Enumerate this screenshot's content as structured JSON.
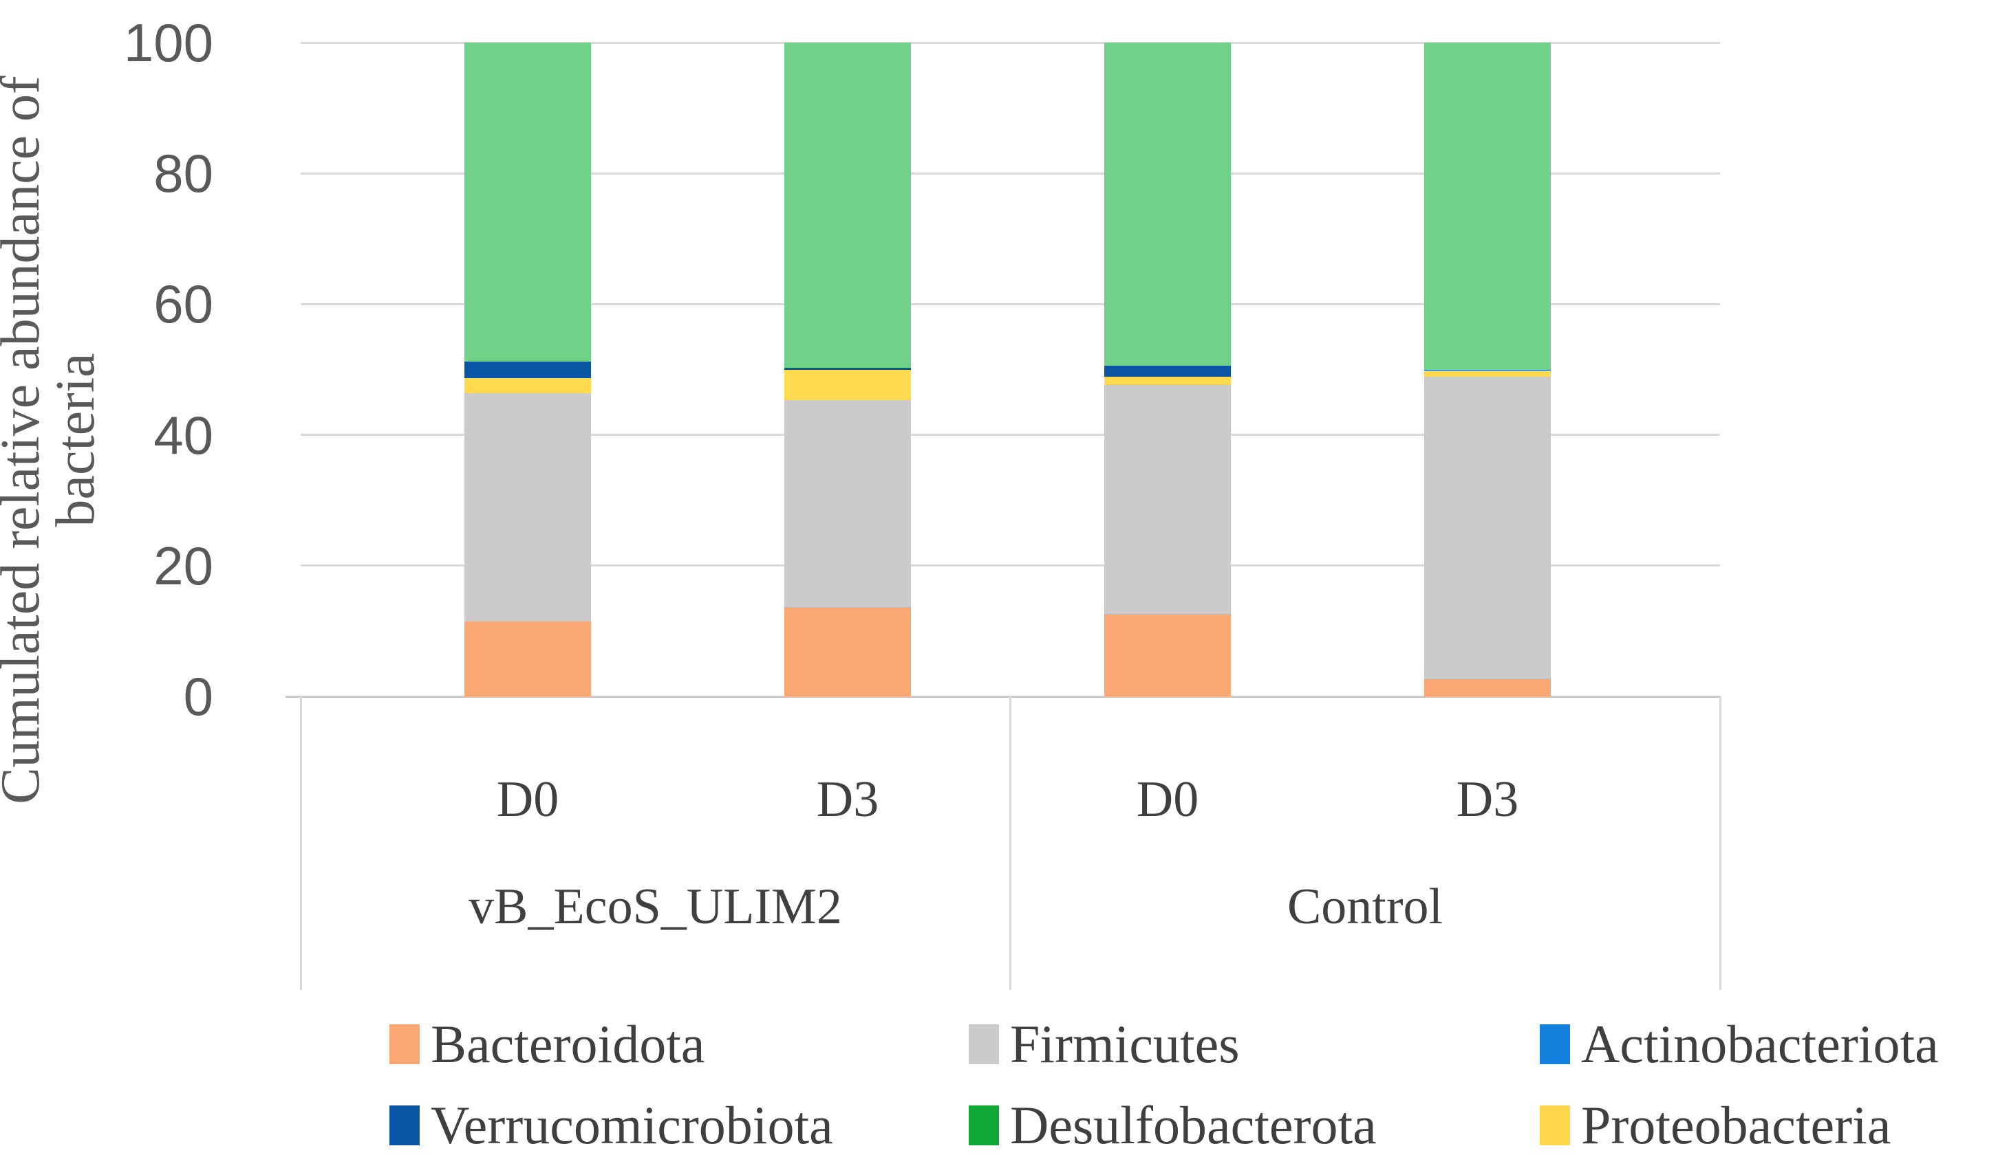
{
  "figure_type": "stacked-bar-chart",
  "y_axis": {
    "title_lines": [
      "Cumulated relative abundance of",
      "bacteria"
    ],
    "title": "Cumulated relative abundance of bacteria",
    "tick_labels": [
      "0",
      "20",
      "40",
      "60",
      "80",
      "100"
    ],
    "min": 0,
    "max": 100
  },
  "x_axis": {
    "groups": [
      {
        "label": "vB_EcoS_ULIM2",
        "categories": [
          "D0",
          "D3"
        ]
      },
      {
        "label": "Control",
        "categories": [
          "D0",
          "D3"
        ]
      }
    ]
  },
  "legend": {
    "items": [
      {
        "label": "Bacteroidota",
        "color": "#F9A873"
      },
      {
        "label": "Firmicutes",
        "color": "#CBCBCB"
      },
      {
        "label": "Actinobacteriota",
        "color": "#1480DE"
      },
      {
        "label": "Verrucomicrobiota",
        "color": "#0B56A4"
      },
      {
        "label": "Desulfobacterota",
        "color": "#0FA836"
      },
      {
        "label": "Proteobacteria",
        "color": "#FFD64A"
      }
    ]
  },
  "chart_data": {
    "type": "bar",
    "subtype": "stacked",
    "categories": [
      "vB_EcoS_ULIM2 D0",
      "vB_EcoS_ULIM2 D3",
      "Control D0",
      "Control D3"
    ],
    "ylabel": "Cumulated relative abundance of bacteria",
    "ylim": [
      0,
      100
    ],
    "grid": true,
    "legend_position": "bottom",
    "series": [
      {
        "name": "Bacteroidota",
        "color": "#F9A873",
        "values": [
          11.5,
          13.7,
          12.6,
          2.7
        ]
      },
      {
        "name": "Firmicutes",
        "color": "#CBCBCB",
        "values": [
          34.9,
          31.6,
          35.1,
          46.2
        ]
      },
      {
        "name": "Actinobacteriota",
        "color": "#1480DE",
        "values": [
          0,
          0,
          0,
          0
        ]
      },
      {
        "name": "Proteobacteria",
        "color": "#FFD94E",
        "values": [
          2.3,
          4.6,
          1.2,
          0.9
        ]
      },
      {
        "name": "Verrucomicrobiota",
        "color": "#0B56A4",
        "values": [
          2.5,
          0.4,
          1.7,
          0.2
        ]
      },
      {
        "name": "Desulfobacterota",
        "color": "#70D289",
        "values": [
          48.8,
          49.7,
          49.4,
          50.0
        ]
      }
    ]
  }
}
